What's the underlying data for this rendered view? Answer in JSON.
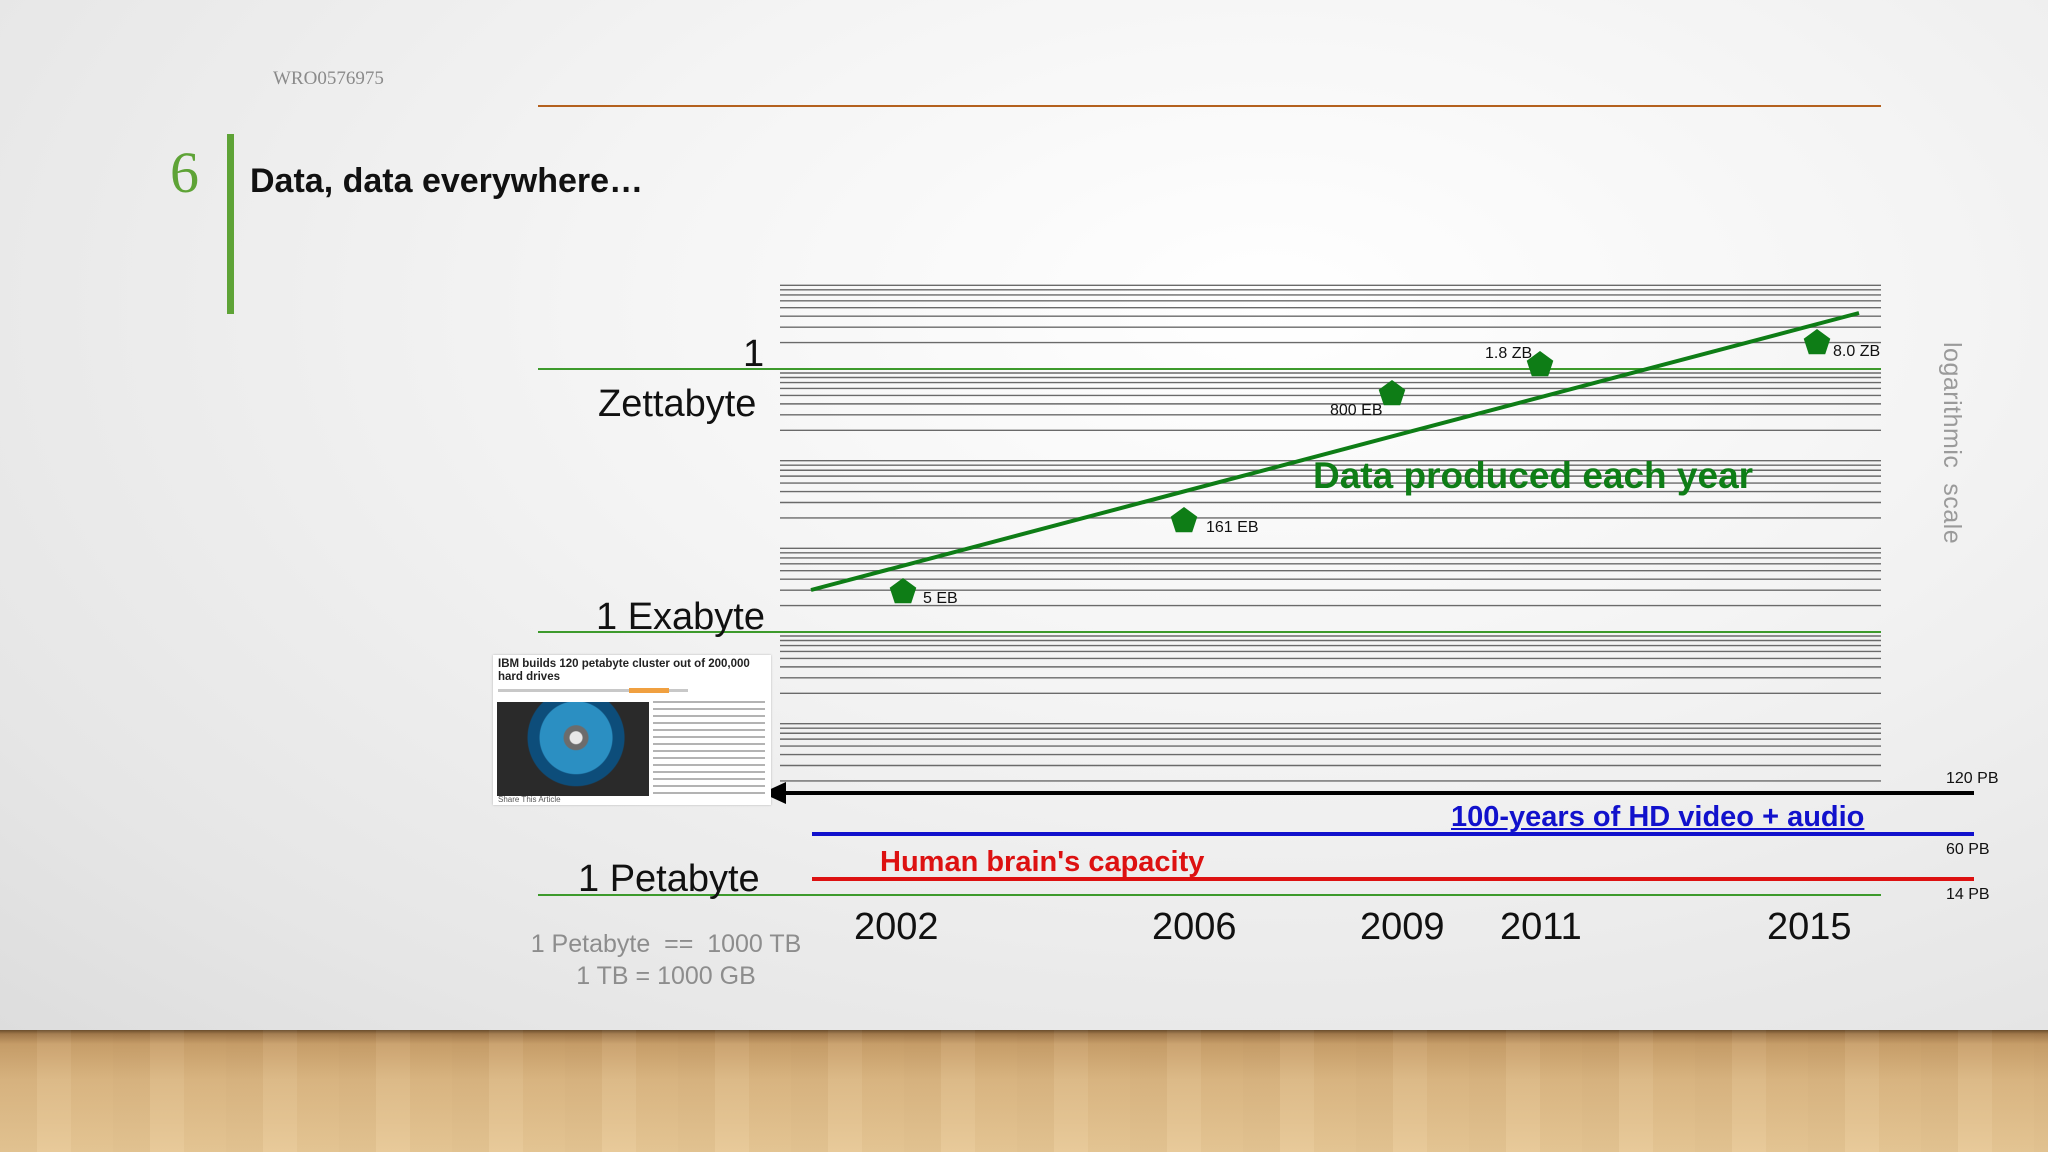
{
  "doc_id": "WRO0576975",
  "slide_number": "6",
  "slide_title": "Data, data everywhere…",
  "colors": {
    "accent": "#5ea336",
    "trend": "#0e7d16",
    "video": "#1111cc",
    "brain": "#dd1111",
    "ibm_arrow": "#000000"
  },
  "y_labels": {
    "zettabyte_1": "1",
    "zettabyte_2": "Zettabyte",
    "exabyte": "1 Exabyte",
    "petabyte": "1 Petabyte"
  },
  "unit_note": {
    "line1": "1 Petabyte  ==  1000 TB",
    "line2": "1 TB = 1000 GB"
  },
  "scale_note": "logarithmic  scale",
  "news_clip": {
    "headline": "IBM builds 120 petabyte cluster out of 200,000 hard drives",
    "footer": "Share This Article"
  },
  "chart_data": {
    "type": "scatter",
    "title": "",
    "xlabel": "",
    "ylabel": "",
    "x_ticks": [
      "2002",
      "2006",
      "2009",
      "2011",
      "2015"
    ],
    "y_scale": "log",
    "y_unit": "PB",
    "ylim_pb": [
      1,
      10000000
    ],
    "series": [
      {
        "name": "Data produced each year",
        "marker": "pentagon",
        "points": [
          {
            "x": 2002,
            "y_pb": 5000,
            "label": "5 EB"
          },
          {
            "x": 2006,
            "y_pb": 161000,
            "label": "161 EB"
          },
          {
            "x": 2009,
            "y_pb": 800000,
            "label": "800 EB"
          },
          {
            "x": 2011,
            "y_pb": 1800000,
            "label": "1.8 ZB"
          },
          {
            "x": 2015,
            "y_pb": 8000000,
            "label": "8.0 ZB"
          }
        ],
        "trendline": [
          {
            "x": 2001.5,
            "y_pb": 3400
          },
          {
            "x": 2015.7,
            "y_pb": 12000000
          }
        ]
      }
    ],
    "reference_lines": [
      {
        "name": "IBM builds 120 petabyte cluster out of 200,000 hard drives",
        "y_pb": 120,
        "label": "120 PB"
      },
      {
        "name": "100-years of HD video + audio",
        "y_pb": 60,
        "label": "60 PB"
      },
      {
        "name": "Human brain's capacity",
        "y_pb": 14,
        "label": "14 PB"
      }
    ],
    "grid": true
  }
}
